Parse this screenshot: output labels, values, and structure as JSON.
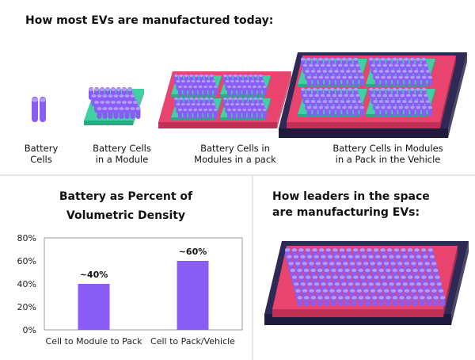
{
  "top": {
    "title": "How most EVs are manufactured today:",
    "labels": [
      "Battery\nCells",
      "Battery Cells\nin a Module",
      "Battery Cells in\nModules in a pack",
      "Battery Cells in Modules\nin a Pack in the Vehicle"
    ]
  },
  "bottom_right": {
    "title_line1": "How leaders in the space",
    "title_line2": "are manufacturing EVs:"
  },
  "colors": {
    "cell": "#8a5cf6",
    "module": "#3fd1a3",
    "pack": "#e8446e",
    "vehicle": "#2e2a55"
  },
  "chart_data": {
    "type": "bar",
    "title_line1": "Battery as Percent of",
    "title_line2": "Volumetric Density",
    "categories": [
      "Cell to Module to Pack",
      "Cell to Pack/Vehicle"
    ],
    "values": [
      40,
      60
    ],
    "data_labels": [
      "~40%",
      "~60%"
    ],
    "yticks": [
      "0%",
      "20%",
      "40%",
      "60%",
      "80%"
    ],
    "ylim": [
      0,
      80
    ],
    "bar_color": "#8a5cf6"
  }
}
